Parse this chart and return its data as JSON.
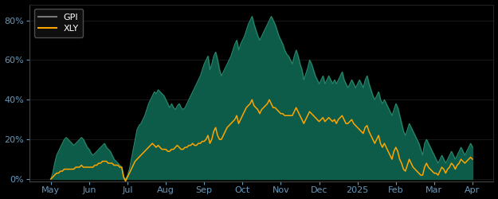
{
  "background_color": "#000000",
  "plot_bg_color": "#000000",
  "gpi_fill_color": "#0d5c4a",
  "gpi_line_color": "#2d8a6e",
  "xly_line_color": "#FFA500",
  "legend_gpi_color": "#777777",
  "ylim": [
    -0.01,
    0.88
  ],
  "yticks": [
    0.0,
    0.2,
    0.4,
    0.6,
    0.8
  ],
  "ytick_labels": [
    "0%",
    "20%",
    "40%",
    "60%",
    "80%"
  ],
  "tick_color": "#6699bb",
  "grid_color": "#222222",
  "x_labels": [
    "May",
    "Jun",
    "Jul",
    "Aug",
    "Sep",
    "Oct",
    "Nov",
    "Dec",
    "2025",
    "Feb",
    "Mar",
    "Apr"
  ],
  "x_label_colors": [
    "#FFA500",
    "#FFA500",
    "#FFA500",
    "#6699bb",
    "#6699bb",
    "#6699bb",
    "#6699bb",
    "#6699bb",
    "#6699bb",
    "#6699bb",
    "#6699bb",
    "#6699bb"
  ],
  "gpi_data": [
    0.0,
    0.03,
    0.08,
    0.12,
    0.14,
    0.16,
    0.18,
    0.2,
    0.21,
    0.2,
    0.19,
    0.18,
    0.17,
    0.18,
    0.19,
    0.2,
    0.21,
    0.2,
    0.18,
    0.16,
    0.15,
    0.13,
    0.12,
    0.13,
    0.14,
    0.15,
    0.16,
    0.17,
    0.18,
    0.16,
    0.15,
    0.14,
    0.12,
    0.1,
    0.09,
    0.08,
    0.07,
    0.06,
    0.01,
    0.0,
    0.02,
    0.05,
    0.1,
    0.15,
    0.2,
    0.25,
    0.27,
    0.28,
    0.3,
    0.32,
    0.35,
    0.38,
    0.4,
    0.42,
    0.44,
    0.43,
    0.45,
    0.44,
    0.43,
    0.42,
    0.4,
    0.38,
    0.36,
    0.38,
    0.36,
    0.35,
    0.37,
    0.38,
    0.36,
    0.35,
    0.36,
    0.38,
    0.4,
    0.42,
    0.44,
    0.46,
    0.48,
    0.5,
    0.52,
    0.55,
    0.58,
    0.6,
    0.62,
    0.55,
    0.58,
    0.62,
    0.64,
    0.6,
    0.55,
    0.52,
    0.54,
    0.56,
    0.58,
    0.6,
    0.62,
    0.65,
    0.68,
    0.7,
    0.65,
    0.68,
    0.7,
    0.72,
    0.75,
    0.78,
    0.8,
    0.82,
    0.78,
    0.75,
    0.72,
    0.7,
    0.72,
    0.74,
    0.76,
    0.78,
    0.8,
    0.82,
    0.8,
    0.78,
    0.75,
    0.72,
    0.7,
    0.68,
    0.65,
    0.63,
    0.62,
    0.6,
    0.58,
    0.62,
    0.65,
    0.62,
    0.58,
    0.55,
    0.5,
    0.53,
    0.56,
    0.6,
    0.58,
    0.55,
    0.52,
    0.5,
    0.48,
    0.5,
    0.52,
    0.48,
    0.5,
    0.52,
    0.5,
    0.48,
    0.5,
    0.48,
    0.5,
    0.52,
    0.54,
    0.5,
    0.48,
    0.46,
    0.48,
    0.5,
    0.48,
    0.46,
    0.48,
    0.5,
    0.48,
    0.46,
    0.5,
    0.52,
    0.48,
    0.45,
    0.42,
    0.4,
    0.42,
    0.44,
    0.4,
    0.38,
    0.4,
    0.38,
    0.36,
    0.34,
    0.32,
    0.35,
    0.38,
    0.36,
    0.32,
    0.28,
    0.24,
    0.22,
    0.25,
    0.28,
    0.26,
    0.24,
    0.22,
    0.2,
    0.18,
    0.15,
    0.12,
    0.18,
    0.2,
    0.18,
    0.16,
    0.14,
    0.12,
    0.1,
    0.08,
    0.1,
    0.12,
    0.1,
    0.08,
    0.1,
    0.12,
    0.14,
    0.12,
    0.1,
    0.12,
    0.14,
    0.16,
    0.14,
    0.12,
    0.14,
    0.16,
    0.18,
    0.16
  ],
  "xly_data": [
    0.0,
    0.01,
    0.02,
    0.03,
    0.03,
    0.04,
    0.04,
    0.05,
    0.05,
    0.05,
    0.05,
    0.05,
    0.05,
    0.06,
    0.06,
    0.06,
    0.07,
    0.06,
    0.06,
    0.06,
    0.06,
    0.06,
    0.06,
    0.07,
    0.07,
    0.08,
    0.08,
    0.09,
    0.09,
    0.09,
    0.08,
    0.08,
    0.08,
    0.07,
    0.07,
    0.07,
    0.06,
    0.06,
    0.01,
    -0.01,
    0.01,
    0.03,
    0.05,
    0.07,
    0.09,
    0.1,
    0.11,
    0.12,
    0.13,
    0.14,
    0.15,
    0.16,
    0.17,
    0.18,
    0.17,
    0.16,
    0.17,
    0.16,
    0.15,
    0.15,
    0.15,
    0.14,
    0.14,
    0.15,
    0.15,
    0.16,
    0.17,
    0.16,
    0.15,
    0.15,
    0.16,
    0.16,
    0.17,
    0.17,
    0.18,
    0.17,
    0.17,
    0.18,
    0.18,
    0.19,
    0.19,
    0.2,
    0.22,
    0.18,
    0.2,
    0.24,
    0.26,
    0.22,
    0.2,
    0.2,
    0.22,
    0.24,
    0.26,
    0.27,
    0.28,
    0.29,
    0.3,
    0.32,
    0.28,
    0.3,
    0.32,
    0.34,
    0.36,
    0.37,
    0.38,
    0.4,
    0.37,
    0.36,
    0.35,
    0.33,
    0.35,
    0.36,
    0.37,
    0.38,
    0.4,
    0.38,
    0.36,
    0.36,
    0.35,
    0.34,
    0.33,
    0.33,
    0.32,
    0.32,
    0.32,
    0.32,
    0.32,
    0.34,
    0.36,
    0.34,
    0.32,
    0.3,
    0.28,
    0.3,
    0.32,
    0.34,
    0.33,
    0.32,
    0.31,
    0.3,
    0.29,
    0.3,
    0.31,
    0.29,
    0.3,
    0.31,
    0.3,
    0.29,
    0.3,
    0.28,
    0.3,
    0.31,
    0.32,
    0.3,
    0.28,
    0.28,
    0.29,
    0.3,
    0.28,
    0.27,
    0.26,
    0.25,
    0.24,
    0.23,
    0.26,
    0.27,
    0.24,
    0.22,
    0.2,
    0.18,
    0.2,
    0.22,
    0.18,
    0.16,
    0.18,
    0.16,
    0.14,
    0.12,
    0.1,
    0.14,
    0.16,
    0.14,
    0.1,
    0.08,
    0.05,
    0.04,
    0.07,
    0.1,
    0.08,
    0.06,
    0.05,
    0.04,
    0.03,
    0.02,
    0.02,
    0.06,
    0.08,
    0.06,
    0.05,
    0.04,
    0.03,
    0.03,
    0.02,
    0.04,
    0.06,
    0.05,
    0.03,
    0.05,
    0.06,
    0.08,
    0.07,
    0.05,
    0.07,
    0.08,
    0.1,
    0.09,
    0.08,
    0.09,
    0.1,
    0.11,
    0.1
  ]
}
